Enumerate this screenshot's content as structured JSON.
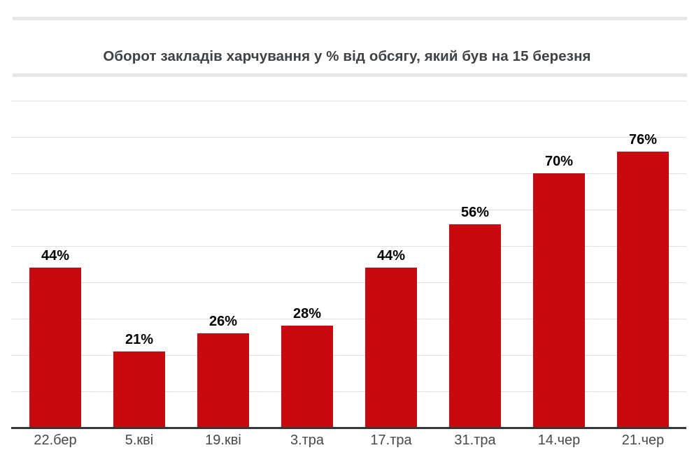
{
  "chart_data": {
    "type": "bar",
    "title": "Оборот закладів харчування у % від обсягу, який був на 15 березня",
    "categories": [
      "22.бер",
      "5.кві",
      "19.кві",
      "3.тра",
      "17.тра",
      "31.тра",
      "14.чер",
      "21.чер"
    ],
    "values": [
      44,
      21,
      26,
      28,
      44,
      56,
      70,
      76
    ],
    "labels": [
      "44%",
      "21%",
      "26%",
      "28%",
      "44%",
      "56%",
      "70%",
      "76%"
    ],
    "xlabel": "",
    "ylabel": "",
    "ylim": [
      0,
      92
    ],
    "grid": true,
    "gridline_interval_percent": 10,
    "legend_position": "none",
    "colors": {
      "bar": "#c80a0e",
      "title_text": "#3e4245",
      "data_label_text": "#000000",
      "axis_label_text": "#46484a",
      "gridline": "#e0e0e0",
      "axis_line": "#35383a",
      "divider_rule": "#e7e7e7",
      "background": "#ffffff"
    }
  }
}
